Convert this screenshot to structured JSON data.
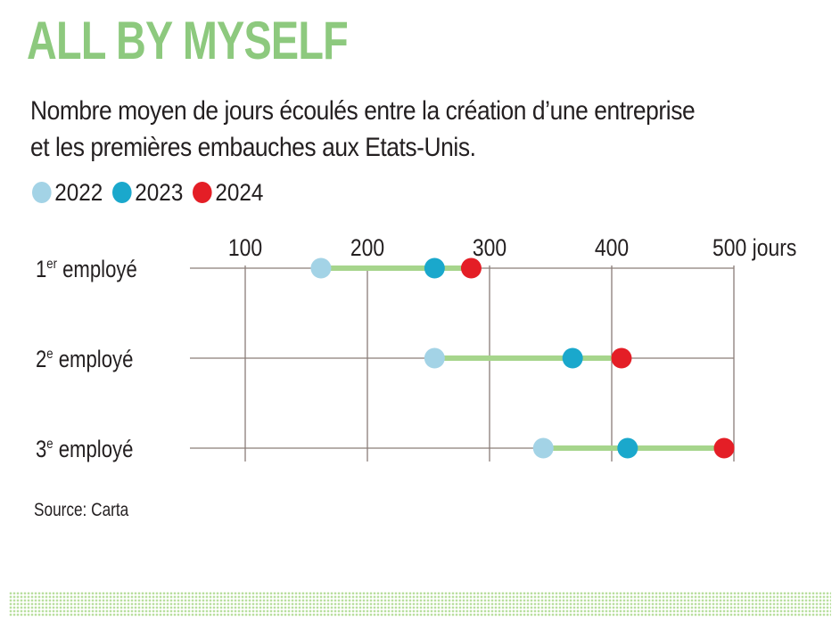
{
  "title": "ALL BY MYSELF",
  "subtitle_line1": "Nombre moyen de jours écoulés entre la création d’une entreprise",
  "subtitle_line2": "et les premières embauches aux Etats-Unis.",
  "source": "Source: Carta",
  "colors": {
    "title": "#8dc97e",
    "range_bar": "#a6d58c",
    "grid": "#8a7d78",
    "2022": "#a3d3e6",
    "2023": "#1aa8cc",
    "2024": "#e41e26",
    "dots_band": "#b9df9f"
  },
  "chart_data": {
    "type": "dot-range",
    "x_tick_labels": [
      "100",
      "200",
      "300",
      "400",
      "500 jours"
    ],
    "x_ticks": [
      100,
      200,
      300,
      400,
      500
    ],
    "xlim": [
      55,
      500
    ],
    "xlabel": "",
    "ylabel": "",
    "grid": true,
    "legend_placement": "top-left",
    "categories": [
      {
        "pre": "1",
        "sup": "er",
        "post": " employé"
      },
      {
        "pre": "2",
        "sup": "e",
        "post": " employé"
      },
      {
        "pre": "3",
        "sup": "e",
        "post": " employé"
      }
    ],
    "series": [
      {
        "name": "2022",
        "color": "#a3d3e6",
        "values": [
          162,
          255,
          344
        ]
      },
      {
        "name": "2023",
        "color": "#1aa8cc",
        "values": [
          255,
          368,
          413
        ]
      },
      {
        "name": "2024",
        "color": "#e41e26",
        "values": [
          285,
          408,
          492
        ]
      }
    ]
  }
}
